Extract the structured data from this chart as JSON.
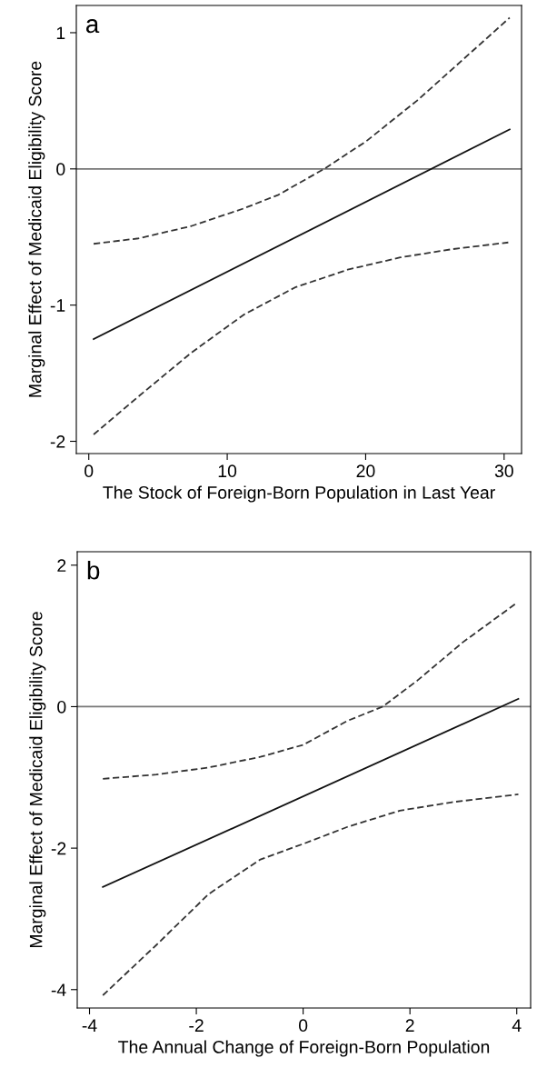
{
  "chart_data": [
    {
      "type": "line",
      "xlabel": "The Stock of Foreign-Born Population in Last Year",
      "ylabel": "Marginal Effect of Medicaid Eligibility Score",
      "annotations": [
        "a"
      ],
      "xlim": [
        -0.9,
        31.26
      ],
      "ylim": [
        -2.09,
        1.2
      ],
      "xticks": [
        0,
        10,
        20,
        30
      ],
      "yticks": [
        -2,
        -1,
        0,
        1
      ],
      "grid": false,
      "legend": false,
      "ref_lines": [
        {
          "axis": "y",
          "value": 0,
          "color": "#777777"
        }
      ],
      "series": [
        {
          "color": "#111111",
          "line_style": "solid",
          "x": [
            0.35,
            30.4
          ],
          "values": [
            -1.25,
            0.29
          ]
        },
        {
          "color": "#333333",
          "line_style": "dashed",
          "x": [
            0.35,
            3.6,
            7.4,
            11.2,
            13.7,
            17,
            20,
            23.7,
            27,
            30.4
          ],
          "values": [
            -0.55,
            -0.51,
            -0.42,
            -0.29,
            -0.19,
            0,
            0.2,
            0.5,
            0.8,
            1.11
          ]
        },
        {
          "color": "#333333",
          "line_style": "dashed",
          "x": [
            0.35,
            3.6,
            7.4,
            11.2,
            14.9,
            18.7,
            22.5,
            26.2,
            30.3
          ],
          "values": [
            -1.95,
            -1.67,
            -1.35,
            -1.07,
            -0.87,
            -0.74,
            -0.65,
            -0.59,
            -0.54
          ]
        }
      ]
    },
    {
      "type": "line",
      "xlabel": "The Annual Change of Foreign-Born Population",
      "ylabel": "Marginal Effect of Medicaid Eligibility Score",
      "annotations": [
        "b"
      ],
      "xlim": [
        -4.23,
        4.26
      ],
      "ylim": [
        -4.26,
        2.19
      ],
      "xticks": [
        -4,
        -2,
        0,
        2,
        4
      ],
      "yticks": [
        -4,
        -2,
        0,
        2
      ],
      "grid": false,
      "legend": false,
      "ref_lines": [
        {
          "axis": "y",
          "value": 0,
          "color": "#777777"
        }
      ],
      "series": [
        {
          "color": "#111111",
          "line_style": "solid",
          "x": [
            -3.75,
            4.03
          ],
          "values": [
            -2.55,
            0.11
          ]
        },
        {
          "color": "#333333",
          "line_style": "dashed",
          "x": [
            -3.75,
            -2.75,
            -1.77,
            -0.8,
            0,
            0.83,
            1.49,
            2.14,
            2.99,
            3.97
          ],
          "values": [
            -1.02,
            -0.96,
            -0.86,
            -0.71,
            -0.54,
            -0.2,
            0,
            0.37,
            0.91,
            1.45
          ]
        },
        {
          "color": "#333333",
          "line_style": "dashed",
          "x": [
            -3.75,
            -2.75,
            -1.77,
            -0.8,
            0,
            0.83,
            1.81,
            2.79,
            4.03
          ],
          "values": [
            -4.08,
            -3.37,
            -2.65,
            -2.16,
            -1.94,
            -1.7,
            -1.47,
            -1.35,
            -1.24
          ]
        }
      ]
    }
  ]
}
